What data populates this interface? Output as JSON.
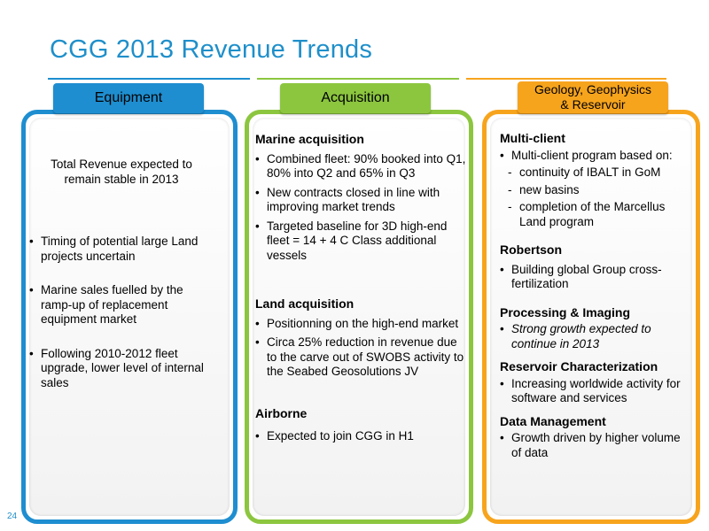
{
  "title": "CGG 2013 Revenue Trends",
  "colors": {
    "blue": "#1e8ed0",
    "green": "#8cc63f",
    "orange": "#f7a41d",
    "title": "#1f8fca"
  },
  "page_number": "24",
  "equipment": {
    "tab": "Equipment",
    "intro": "Total Revenue expected to remain stable in 2013",
    "bullets": [
      "Timing of potential large Land projects uncertain",
      "Marine sales fuelled by the ramp-up of replacement equipment market",
      "Following 2010-2012 fleet upgrade, lower level of internal sales"
    ]
  },
  "acquisition": {
    "tab": "Acquisition",
    "marine_heading": "Marine acquisition",
    "marine_bullets": [
      "Combined fleet: 90% booked into Q1, 80% into Q2 and 65% in Q3",
      "New contracts closed in line with improving market trends",
      "Targeted baseline for 3D high-end fleet  = 14 + 4 C Class additional vessels"
    ],
    "land_heading": "Land acquisition",
    "land_bullets": [
      "Positionning on the high-end market",
      "Circa 25% reduction in revenue due to  the carve out of SWOBS activity to the Seabed Geosolutions JV"
    ],
    "airborne_heading": "Airborne",
    "airborne_bullets": [
      "Expected to join CGG in H1"
    ]
  },
  "ggr": {
    "tab_line1": "Geology, Geophysics",
    "tab_line2": "& Reservoir",
    "multiclient_heading": "Multi-client",
    "multiclient_bullet": "Multi-client program based on:",
    "multiclient_dashes": [
      "continuity of IBALT in GoM",
      "new basins",
      "completion of the Marcellus Land program"
    ],
    "robertson_heading": "Robertson",
    "robertson_bullet": "Building global Group cross-fertilization",
    "processing_heading": "Processing & Imaging",
    "processing_bullet": "Strong growth expected to continue in 2013",
    "reservoir_heading": "Reservoir Characterization",
    "reservoir_bullet": "Increasing worldwide activity for software and services",
    "data_heading": "Data Management",
    "data_bullet": "Growth driven by higher volume of data"
  }
}
